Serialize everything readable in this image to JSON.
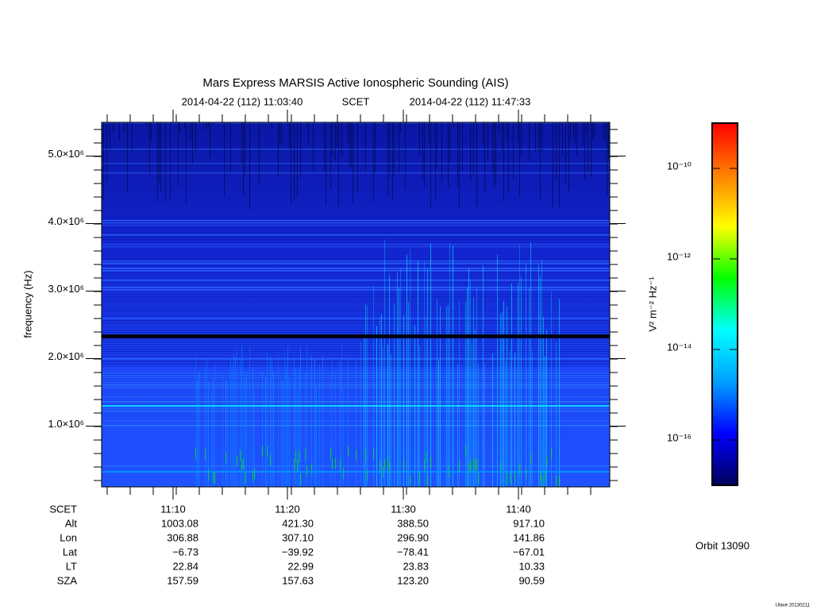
{
  "title": "Mars Express MARSIS Active Ionospheric Sounding (AIS)",
  "time_range": {
    "start": "2014-04-22 (112) 11:03:40",
    "frame": "SCET",
    "end": "2014-04-22 (112) 11:47:33"
  },
  "chart_data": {
    "type": "spectrogram",
    "y_label": "frequency (Hz)",
    "ylim": [
      100000,
      5500000
    ],
    "yticks": [
      {
        "value": 1000000,
        "label": "1.0×10⁶"
      },
      {
        "value": 2000000,
        "label": "2.0×10⁶"
      },
      {
        "value": 3000000,
        "label": "3.0×10⁶"
      },
      {
        "value": 4000000,
        "label": "4.0×10⁶"
      },
      {
        "value": 5000000,
        "label": "5.0×10⁶"
      }
    ],
    "colorbar": {
      "label": "V² m⁻² Hz⁻¹",
      "log_scale": true,
      "clim": [
        1e-17,
        1e-09
      ],
      "ticks": [
        {
          "value": 1e-10,
          "label": "10⁻¹⁰"
        },
        {
          "value": 1e-12,
          "label": "10⁻¹²"
        },
        {
          "value": 1e-14,
          "label": "10⁻¹⁴"
        },
        {
          "value": 1e-16,
          "label": "10⁻¹⁶"
        }
      ],
      "colormap": [
        "#00005a",
        "#0000ff",
        "#00a0ff",
        "#00ffff",
        "#00ff00",
        "#ffff00",
        "#ff8000",
        "#ff0000"
      ]
    }
  },
  "ephemeris": {
    "rows": [
      [
        "SCET",
        "11:10",
        "11:20",
        "11:30",
        "11:40"
      ],
      [
        "Alt",
        "1003.08",
        "421.30",
        "388.50",
        "917.10"
      ],
      [
        "Lon",
        "306.88",
        "307.10",
        "296.90",
        "141.86"
      ],
      [
        "Lat",
        "−6.73",
        "−39.92",
        "−78.41",
        "−67.01"
      ],
      [
        "LT",
        "22.84",
        "22.99",
        "23.83",
        "10.33"
      ],
      [
        "SZA",
        "157.59",
        "157.63",
        "123.20",
        "90.59"
      ]
    ]
  },
  "orbit": "Orbit 13090",
  "footer": "Ulave 20130211"
}
